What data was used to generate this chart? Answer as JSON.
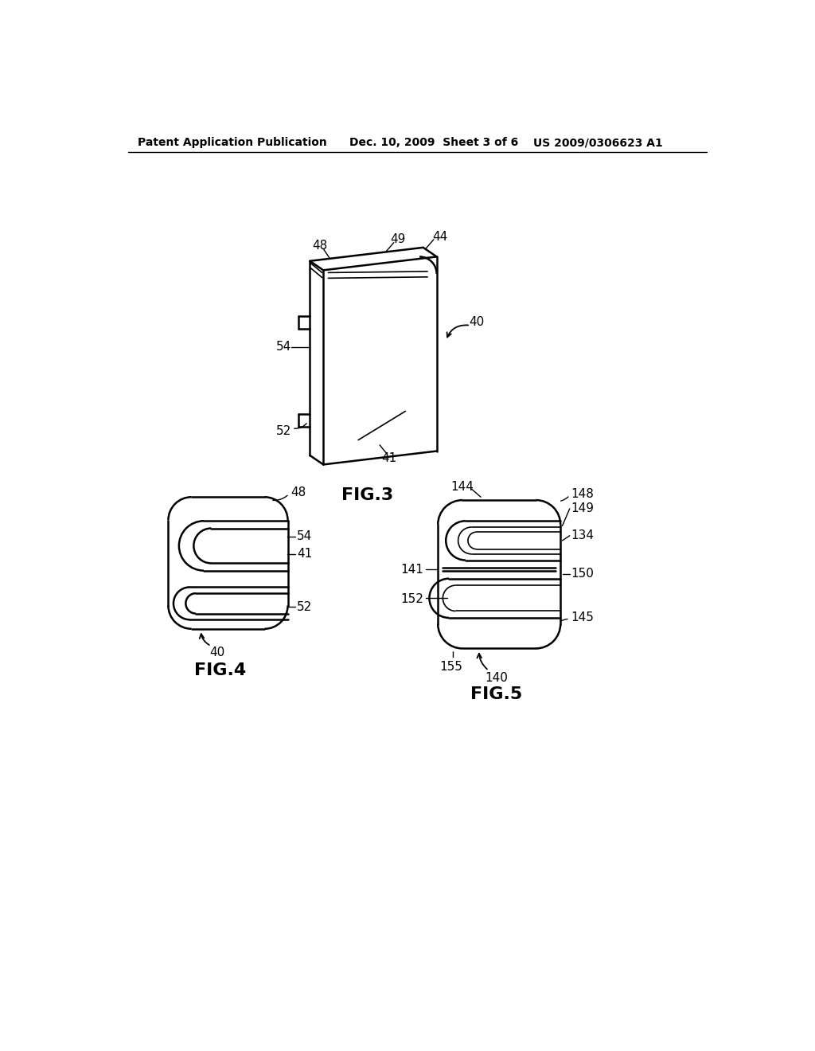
{
  "header_left": "Patent Application Publication",
  "header_mid": "Dec. 10, 2009  Sheet 3 of 6",
  "header_right": "US 2009/0306623 A1",
  "bg_color": "#ffffff",
  "line_color": "#000000",
  "fig3_label": "FIG.3",
  "fig4_label": "FIG.4",
  "fig5_label": "FIG.5"
}
